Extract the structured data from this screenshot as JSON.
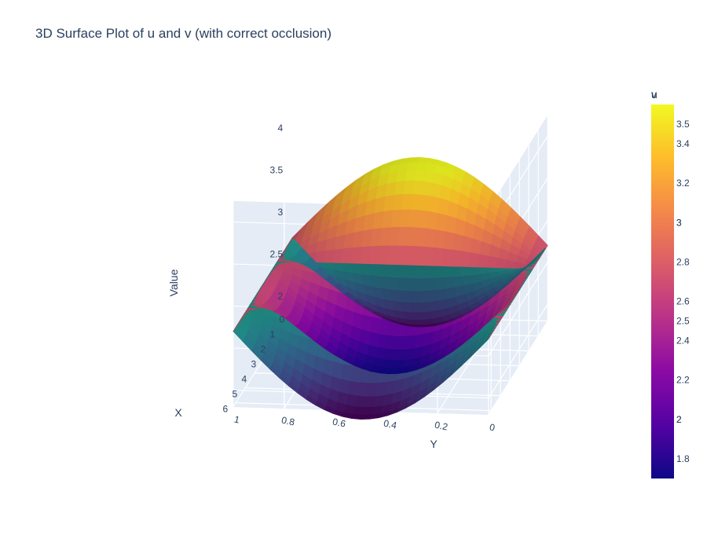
{
  "chart_data": {
    "type": "surface3d",
    "title": "3D Surface Plot of u and v (with correct occlusion)",
    "axes": {
      "x": {
        "label": "X",
        "ticks": [
          "0",
          "1",
          "2",
          "3",
          "4",
          "5",
          "6"
        ],
        "range": [
          0,
          6.28
        ]
      },
      "y": {
        "label": "Y",
        "ticks": [
          "1",
          "0.8",
          "0.6",
          "0.4",
          "0.2",
          "0"
        ],
        "range": [
          0,
          1
        ]
      },
      "z": {
        "label": "Value",
        "ticks": [
          "2",
          "2.5",
          "3",
          "3.5",
          "4"
        ],
        "range": [
          1.8,
          4.2
        ]
      }
    },
    "grid": true,
    "series": [
      {
        "name": "u",
        "colorscale": "plasma",
        "range": [
          1.7,
          3.6
        ],
        "formula": "u = 2.7 + sin(pi*y)*cos(x)",
        "colorbar_ticks": [
          "1.8",
          "2",
          "2.2",
          "2.4",
          "2.6",
          "2.8",
          "3",
          "3.2",
          "3.4"
        ]
      },
      {
        "name": "v",
        "colorscale": "viridis",
        "range": [
          1.7,
          3.6
        ],
        "formula": "v = 2.7 - sin(pi*y)*cos(x)",
        "colorbar_ticks": [
          "2",
          "2.5",
          "3",
          "3.5"
        ]
      }
    ],
    "colorbar": {
      "titles": [
        "u",
        "v"
      ],
      "placement": "right"
    }
  }
}
